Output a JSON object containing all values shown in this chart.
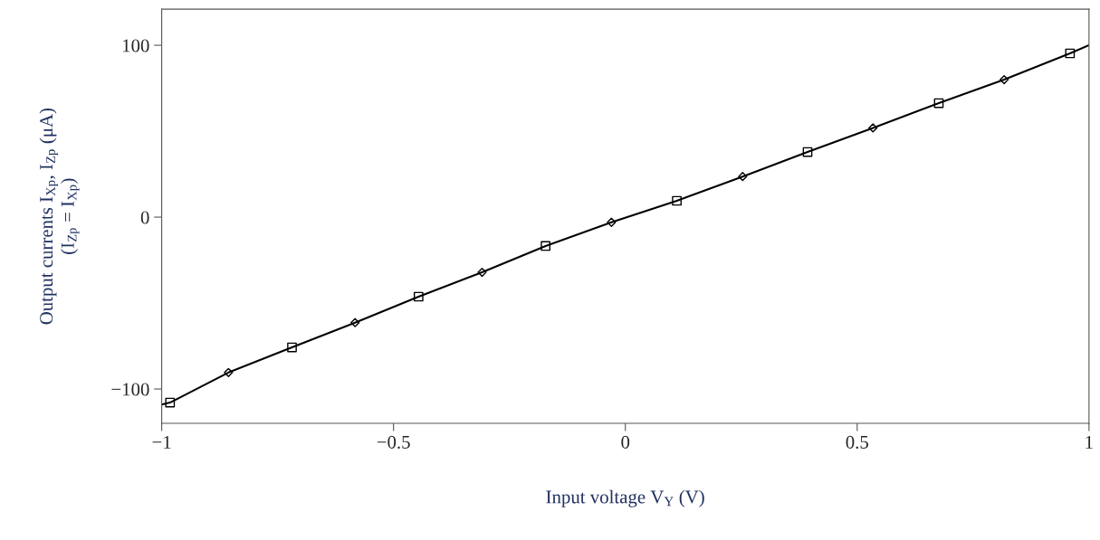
{
  "chart_data": {
    "type": "line",
    "xlabel": "Input voltage V$_{Y}$ (V)",
    "ylabel": "Output currents I$_{Xp}$, I$_{Zp}$ (μA)\n(I$_{Zp}$ = I$_{Xp}$)",
    "series": [
      {
        "color": "#000000",
        "marker": "none",
        "line_style": "solid",
        "x": [
          -1,
          -0.982,
          -0.856,
          -0.719,
          -0.583,
          -0.446,
          -0.309,
          -0.172,
          -0.03,
          0.111,
          0.253,
          0.393,
          0.534,
          0.676,
          0.817,
          0.959,
          1
        ],
        "values": [
          -109,
          -107.9,
          -90.4,
          -75.8,
          -61.4,
          -46.3,
          -32.1,
          -16.8,
          -3.0,
          9.5,
          23.6,
          37.9,
          51.9,
          66.3,
          80.0,
          95.3,
          100
        ]
      },
      {
        "type": "scatter",
        "color": "#000000",
        "marker": "square",
        "x": [
          -0.982,
          -0.719,
          -0.446,
          -0.172,
          0.111,
          0.393,
          0.676,
          0.959
        ],
        "values": [
          -107.9,
          -75.8,
          -46.3,
          -16.8,
          9.5,
          37.9,
          66.3,
          95.3
        ]
      },
      {
        "type": "scatter",
        "color": "#000000",
        "marker": "diamond",
        "x": [
          -0.856,
          -0.583,
          -0.309,
          -0.03,
          0.253,
          0.534,
          0.817
        ],
        "values": [
          -90.4,
          -61.4,
          -32.1,
          -3.0,
          23.6,
          51.9,
          80.0
        ]
      }
    ],
    "xlim": [
      -1,
      1
    ],
    "ylim": [
      -120,
      121
    ],
    "xticks": [
      {
        "value": -1,
        "label": "−1"
      },
      {
        "value": -0.5,
        "label": "−0.5"
      },
      0,
      0.5,
      1
    ],
    "yticks": [
      {
        "value": -100,
        "label": "−100"
      },
      0,
      100
    ],
    "grid": false,
    "legend": false
  }
}
